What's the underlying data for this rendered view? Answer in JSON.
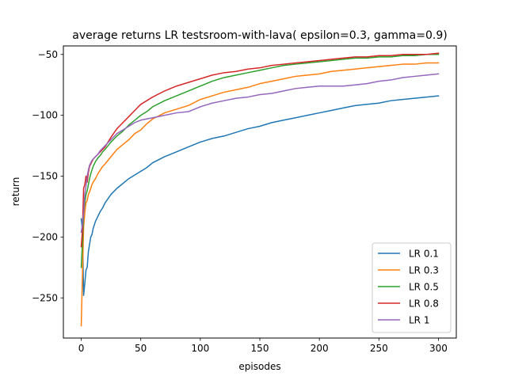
{
  "chart_data": {
    "type": "line",
    "title": "average returns LR testsroom-with-lava( epsilon=0.3, gamma=0.9)",
    "xlabel": "episodes",
    "ylabel": "return",
    "xlim": [
      -15,
      315
    ],
    "ylim": [
      -283,
      -43
    ],
    "xticks": [
      0,
      50,
      100,
      150,
      200,
      250,
      300
    ],
    "yticks": [
      -250,
      -200,
      -150,
      -100,
      -50
    ],
    "grid": false,
    "legend_position": "lower right",
    "series": [
      {
        "name": "LR 0.1",
        "color": "#1f77b4",
        "points": [
          [
            0,
            -185
          ],
          [
            1,
            -194
          ],
          [
            2,
            -248
          ],
          [
            3,
            -238
          ],
          [
            4,
            -227
          ],
          [
            5,
            -225
          ],
          [
            6,
            -212
          ],
          [
            7,
            -206
          ],
          [
            8,
            -200
          ],
          [
            9,
            -198
          ],
          [
            10,
            -193
          ],
          [
            12,
            -187
          ],
          [
            14,
            -183
          ],
          [
            16,
            -179
          ],
          [
            18,
            -176
          ],
          [
            20,
            -172
          ],
          [
            25,
            -165
          ],
          [
            30,
            -160
          ],
          [
            35,
            -156
          ],
          [
            40,
            -152
          ],
          [
            45,
            -149
          ],
          [
            50,
            -146
          ],
          [
            55,
            -143
          ],
          [
            60,
            -139
          ],
          [
            70,
            -134
          ],
          [
            80,
            -130
          ],
          [
            90,
            -126
          ],
          [
            100,
            -122
          ],
          [
            110,
            -119
          ],
          [
            120,
            -117
          ],
          [
            130,
            -114
          ],
          [
            140,
            -111
          ],
          [
            150,
            -109
          ],
          [
            160,
            -106
          ],
          [
            170,
            -104
          ],
          [
            180,
            -102
          ],
          [
            190,
            -100
          ],
          [
            200,
            -98
          ],
          [
            210,
            -96
          ],
          [
            220,
            -94
          ],
          [
            230,
            -92
          ],
          [
            240,
            -91
          ],
          [
            250,
            -90
          ],
          [
            260,
            -88
          ],
          [
            270,
            -87
          ],
          [
            280,
            -86
          ],
          [
            290,
            -85
          ],
          [
            300,
            -84
          ]
        ]
      },
      {
        "name": "LR 0.3",
        "color": "#ff7f0e",
        "points": [
          [
            0,
            -273
          ],
          [
            1,
            -232
          ],
          [
            2,
            -192
          ],
          [
            3,
            -180
          ],
          [
            4,
            -172
          ],
          [
            5,
            -170
          ],
          [
            6,
            -165
          ],
          [
            7,
            -163
          ],
          [
            8,
            -160
          ],
          [
            9,
            -157
          ],
          [
            10,
            -155
          ],
          [
            12,
            -152
          ],
          [
            14,
            -148
          ],
          [
            16,
            -145
          ],
          [
            18,
            -142
          ],
          [
            20,
            -140
          ],
          [
            25,
            -134
          ],
          [
            30,
            -128
          ],
          [
            35,
            -124
          ],
          [
            40,
            -120
          ],
          [
            45,
            -115
          ],
          [
            50,
            -112
          ],
          [
            55,
            -107
          ],
          [
            60,
            -103
          ],
          [
            70,
            -98
          ],
          [
            80,
            -95
          ],
          [
            90,
            -92
          ],
          [
            100,
            -87
          ],
          [
            110,
            -84
          ],
          [
            120,
            -81
          ],
          [
            130,
            -79
          ],
          [
            140,
            -77
          ],
          [
            150,
            -74
          ],
          [
            160,
            -72
          ],
          [
            170,
            -70
          ],
          [
            180,
            -68
          ],
          [
            190,
            -67
          ],
          [
            200,
            -66
          ],
          [
            210,
            -64
          ],
          [
            220,
            -63
          ],
          [
            230,
            -62
          ],
          [
            240,
            -61
          ],
          [
            250,
            -60
          ],
          [
            260,
            -59
          ],
          [
            270,
            -58
          ],
          [
            280,
            -58
          ],
          [
            290,
            -57
          ],
          [
            300,
            -57
          ]
        ]
      },
      {
        "name": "LR 0.5",
        "color": "#2ca02c",
        "points": [
          [
            0,
            -225
          ],
          [
            1,
            -205
          ],
          [
            2,
            -180
          ],
          [
            3,
            -172
          ],
          [
            4,
            -165
          ],
          [
            5,
            -162
          ],
          [
            6,
            -157
          ],
          [
            7,
            -152
          ],
          [
            8,
            -148
          ],
          [
            9,
            -145
          ],
          [
            10,
            -142
          ],
          [
            12,
            -138
          ],
          [
            14,
            -135
          ],
          [
            16,
            -133
          ],
          [
            18,
            -130
          ],
          [
            20,
            -128
          ],
          [
            25,
            -122
          ],
          [
            30,
            -117
          ],
          [
            35,
            -113
          ],
          [
            40,
            -108
          ],
          [
            45,
            -104
          ],
          [
            50,
            -100
          ],
          [
            55,
            -97
          ],
          [
            60,
            -93
          ],
          [
            70,
            -88
          ],
          [
            80,
            -84
          ],
          [
            90,
            -80
          ],
          [
            100,
            -76
          ],
          [
            110,
            -72
          ],
          [
            120,
            -69
          ],
          [
            130,
            -67
          ],
          [
            140,
            -65
          ],
          [
            150,
            -63
          ],
          [
            160,
            -61
          ],
          [
            170,
            -59
          ],
          [
            180,
            -58
          ],
          [
            190,
            -57
          ],
          [
            200,
            -56
          ],
          [
            210,
            -55
          ],
          [
            220,
            -54
          ],
          [
            230,
            -53
          ],
          [
            240,
            -53
          ],
          [
            250,
            -52
          ],
          [
            260,
            -52
          ],
          [
            270,
            -51
          ],
          [
            280,
            -51
          ],
          [
            290,
            -50
          ],
          [
            300,
            -50
          ]
        ]
      },
      {
        "name": "LR 0.8",
        "color": "#d62728",
        "points": [
          [
            0,
            -208
          ],
          [
            1,
            -195
          ],
          [
            2,
            -160
          ],
          [
            3,
            -157
          ],
          [
            4,
            -150
          ],
          [
            5,
            -155
          ],
          [
            6,
            -147
          ],
          [
            7,
            -142
          ],
          [
            8,
            -140
          ],
          [
            9,
            -138
          ],
          [
            10,
            -136
          ],
          [
            12,
            -134
          ],
          [
            14,
            -132
          ],
          [
            16,
            -130
          ],
          [
            18,
            -128
          ],
          [
            20,
            -126
          ],
          [
            25,
            -118
          ],
          [
            30,
            -111
          ],
          [
            35,
            -106
          ],
          [
            40,
            -101
          ],
          [
            45,
            -96
          ],
          [
            50,
            -91
          ],
          [
            55,
            -88
          ],
          [
            60,
            -85
          ],
          [
            70,
            -80
          ],
          [
            80,
            -76
          ],
          [
            90,
            -73
          ],
          [
            100,
            -70
          ],
          [
            110,
            -67
          ],
          [
            120,
            -65
          ],
          [
            130,
            -64
          ],
          [
            140,
            -62
          ],
          [
            150,
            -61
          ],
          [
            160,
            -59
          ],
          [
            170,
            -58
          ],
          [
            180,
            -57
          ],
          [
            190,
            -56
          ],
          [
            200,
            -55
          ],
          [
            210,
            -54
          ],
          [
            220,
            -53
          ],
          [
            230,
            -52
          ],
          [
            240,
            -52
          ],
          [
            250,
            -51
          ],
          [
            260,
            -51
          ],
          [
            270,
            -50
          ],
          [
            280,
            -50
          ],
          [
            290,
            -50
          ],
          [
            300,
            -49
          ]
        ]
      },
      {
        "name": "LR 1",
        "color": "#9467bd",
        "points": [
          [
            0,
            -196
          ],
          [
            1,
            -190
          ],
          [
            2,
            -180
          ],
          [
            3,
            -165
          ],
          [
            4,
            -158
          ],
          [
            5,
            -150
          ],
          [
            6,
            -145
          ],
          [
            7,
            -141
          ],
          [
            8,
            -139
          ],
          [
            9,
            -137
          ],
          [
            10,
            -136
          ],
          [
            12,
            -134
          ],
          [
            14,
            -132
          ],
          [
            16,
            -129
          ],
          [
            18,
            -127
          ],
          [
            20,
            -125
          ],
          [
            25,
            -120
          ],
          [
            30,
            -115
          ],
          [
            35,
            -112
          ],
          [
            40,
            -109
          ],
          [
            45,
            -106
          ],
          [
            50,
            -104
          ],
          [
            55,
            -103
          ],
          [
            60,
            -102
          ],
          [
            70,
            -100
          ],
          [
            80,
            -98
          ],
          [
            90,
            -97
          ],
          [
            100,
            -93
          ],
          [
            110,
            -90
          ],
          [
            120,
            -88
          ],
          [
            130,
            -86
          ],
          [
            140,
            -85
          ],
          [
            150,
            -83
          ],
          [
            160,
            -82
          ],
          [
            170,
            -80
          ],
          [
            180,
            -78
          ],
          [
            190,
            -77
          ],
          [
            200,
            -76
          ],
          [
            210,
            -76
          ],
          [
            220,
            -76
          ],
          [
            230,
            -75
          ],
          [
            240,
            -74
          ],
          [
            250,
            -72
          ],
          [
            260,
            -71
          ],
          [
            270,
            -69
          ],
          [
            280,
            -68
          ],
          [
            290,
            -67
          ],
          [
            300,
            -66
          ]
        ]
      }
    ]
  }
}
